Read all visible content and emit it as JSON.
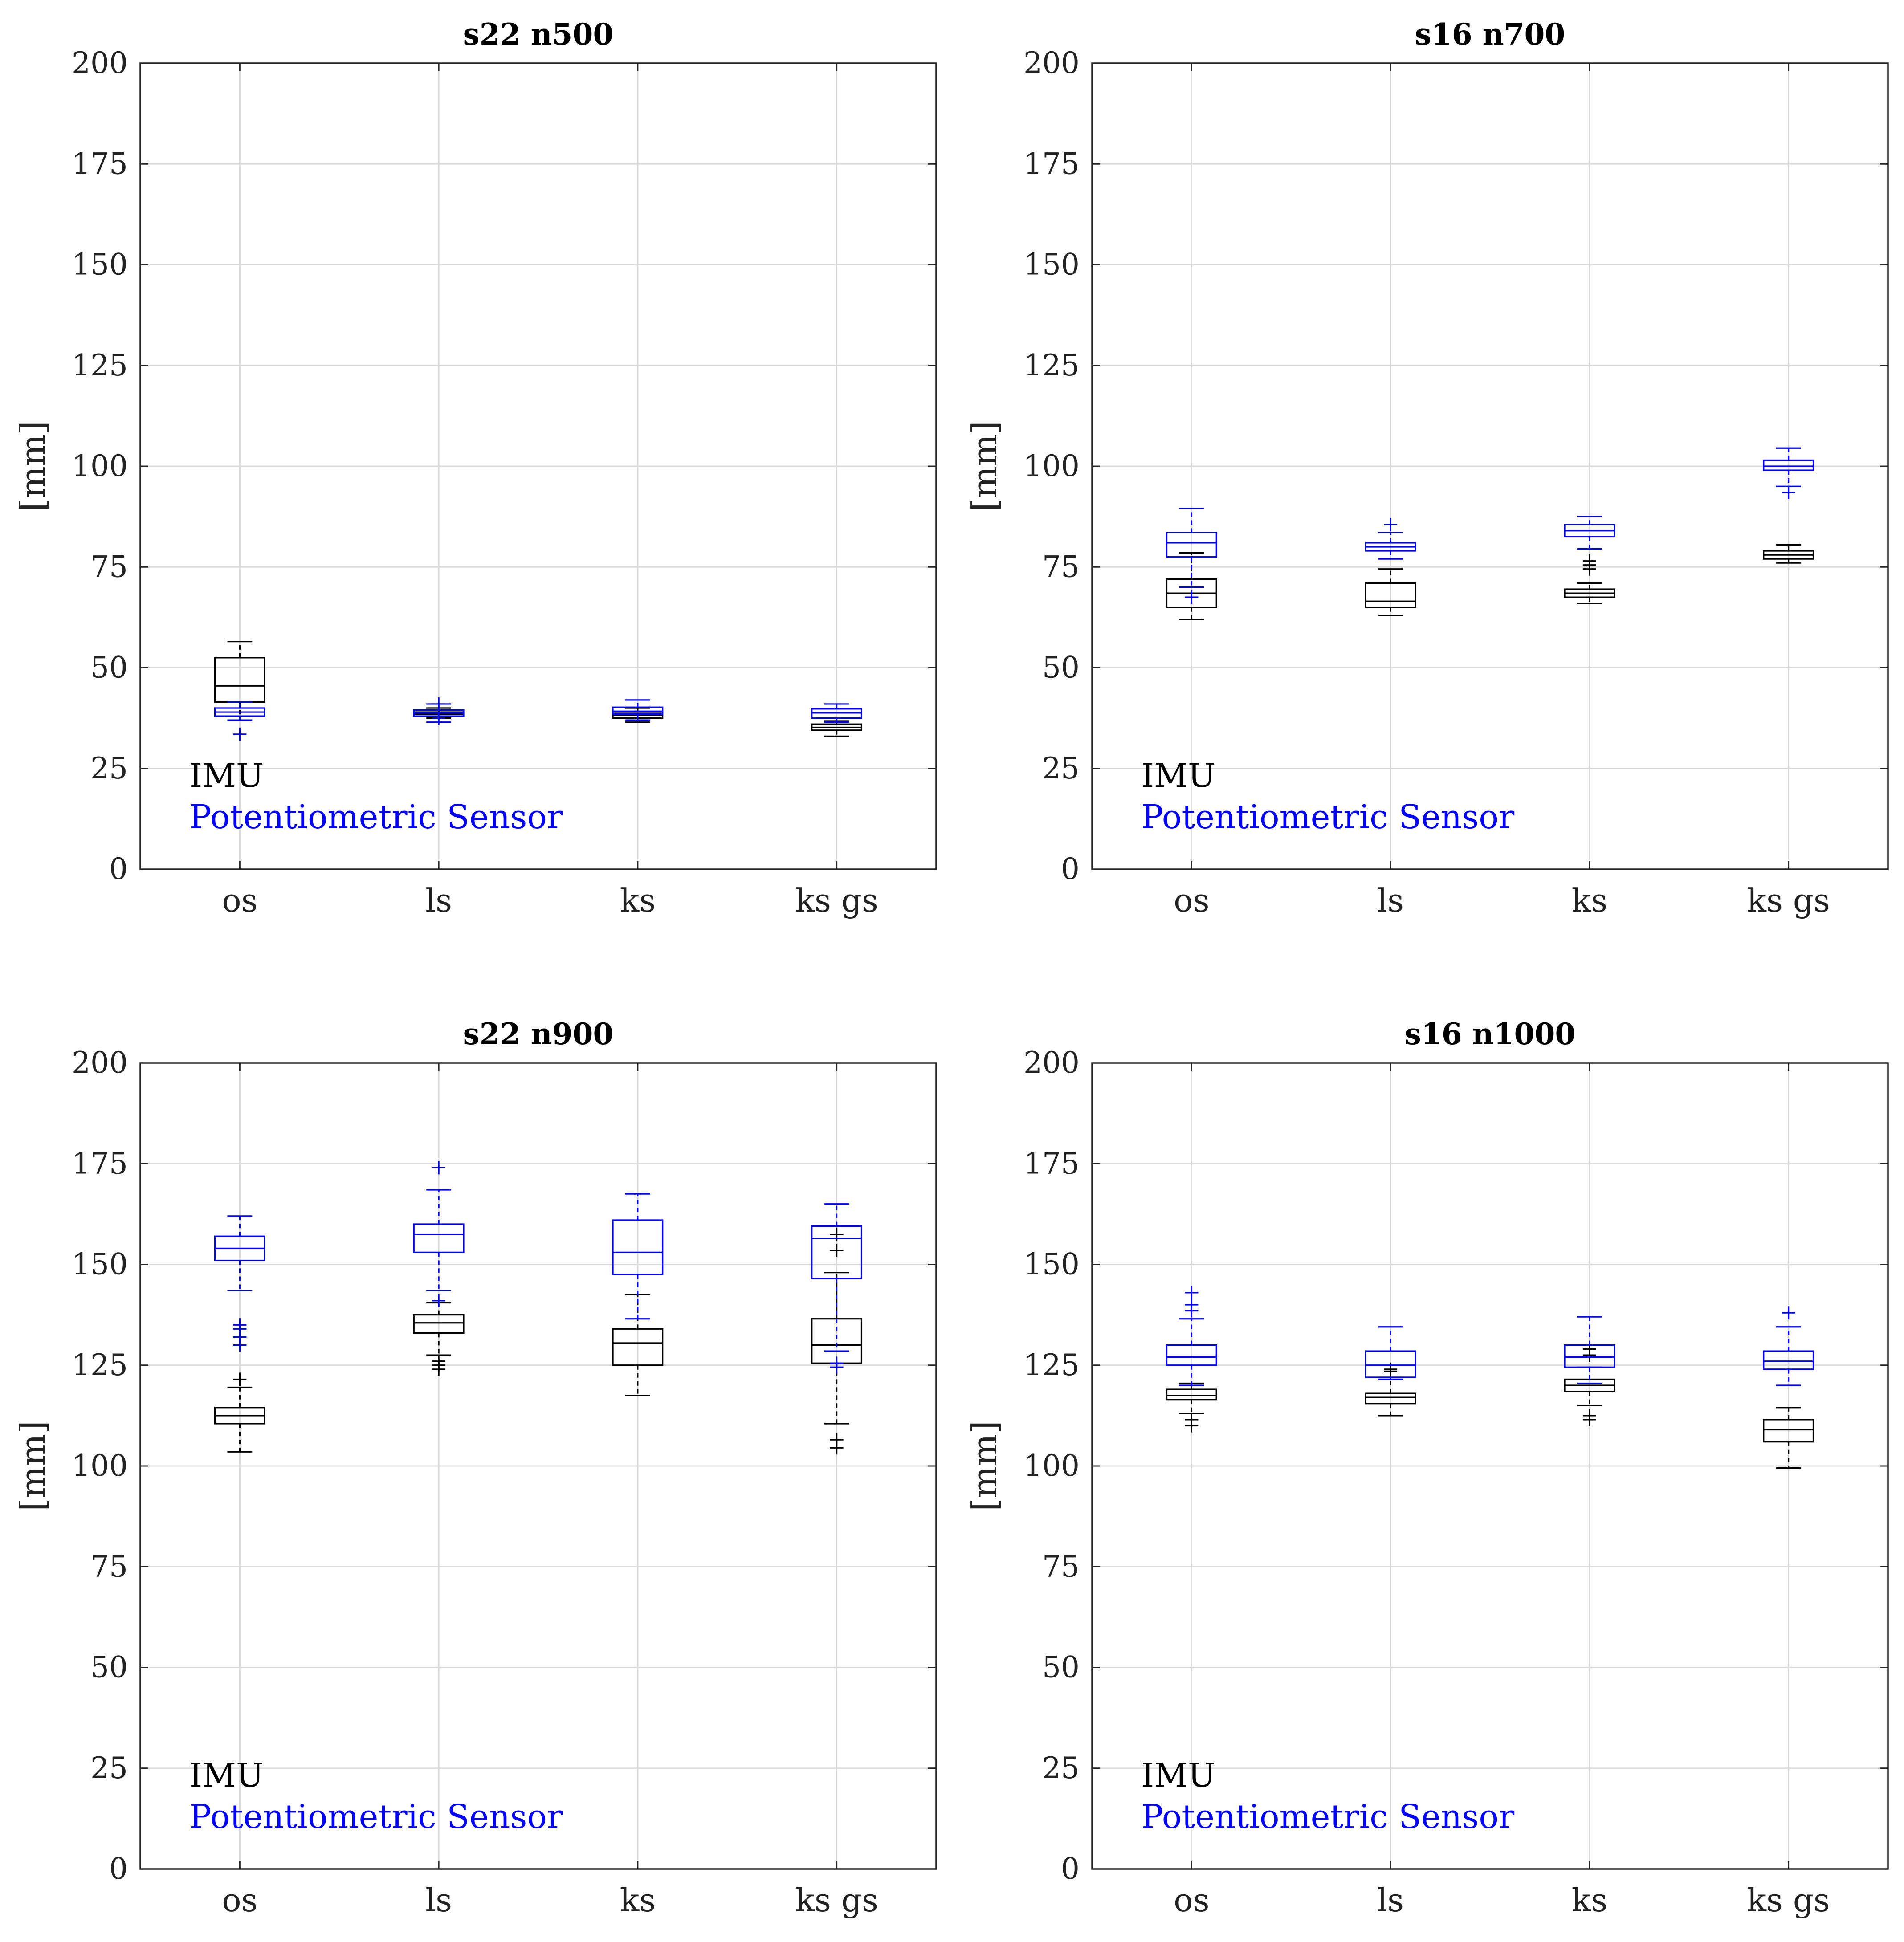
{
  "colors": {
    "imu": "#000000",
    "potentiometric": "#0000ff",
    "grid": "#d9d9d9",
    "axes": "#262626"
  },
  "legend": {
    "imu": "IMU",
    "potentiometric": "Potentiometric Sensor"
  },
  "chart_data": [
    {
      "type": "boxplot",
      "title": "s22 n500",
      "ylabel": "[mm]",
      "xlabel": "",
      "ylim": [
        0,
        200
      ],
      "yticks": [
        "0",
        "25",
        "50",
        "75",
        "100",
        "125",
        "150",
        "175",
        "200"
      ],
      "categories": [
        "os",
        "ls",
        "ks",
        "ks gs"
      ],
      "grid": true,
      "legend_position": "bottom-left",
      "series": [
        {
          "name": "IMU",
          "boxes": [
            {
              "whisker_low": 38,
              "q1": 41.5,
              "median": 45.5,
              "q3": 52.5,
              "whisker_high": 56.5,
              "outliers": []
            },
            {
              "whisker_low": 37.5,
              "q1": 38,
              "median": 38.5,
              "q3": 39,
              "whisker_high": 40,
              "outliers": []
            },
            {
              "whisker_low": 36.5,
              "q1": 37.5,
              "median": 38.2,
              "q3": 39,
              "whisker_high": 40,
              "outliers": []
            },
            {
              "whisker_low": 33,
              "q1": 34.5,
              "median": 35.2,
              "q3": 36,
              "whisker_high": 36.8,
              "outliers": []
            }
          ]
        },
        {
          "name": "Potentiometric Sensor",
          "boxes": [
            {
              "whisker_low": 37,
              "q1": 38,
              "median": 39,
              "q3": 40,
              "whisker_high": 41.5,
              "outliers": [
                33.5
              ]
            },
            {
              "whisker_low": 36.5,
              "q1": 38,
              "median": 38.8,
              "q3": 39.5,
              "whisker_high": 41,
              "outliers": [
                37.5,
                41
              ]
            },
            {
              "whisker_low": 37,
              "q1": 38.5,
              "median": 39.2,
              "q3": 40.2,
              "whisker_high": 42,
              "outliers": []
            },
            {
              "whisker_low": 36.5,
              "q1": 37.5,
              "median": 38.8,
              "q3": 39.8,
              "whisker_high": 41,
              "outliers": []
            }
          ]
        }
      ]
    },
    {
      "type": "boxplot",
      "title": "s16 n700",
      "ylabel": "[mm]",
      "xlabel": "",
      "ylim": [
        0,
        200
      ],
      "yticks": [
        "0",
        "25",
        "50",
        "75",
        "100",
        "125",
        "150",
        "175",
        "200"
      ],
      "categories": [
        "os",
        "ls",
        "ks",
        "ks gs"
      ],
      "grid": true,
      "legend_position": "bottom-left",
      "series": [
        {
          "name": "IMU",
          "boxes": [
            {
              "whisker_low": 62,
              "q1": 65,
              "median": 68.5,
              "q3": 72,
              "whisker_high": 78.5,
              "outliers": []
            },
            {
              "whisker_low": 63,
              "q1": 65,
              "median": 66.5,
              "q3": 71,
              "whisker_high": 74.5,
              "outliers": []
            },
            {
              "whisker_low": 66,
              "q1": 67.5,
              "median": 68.5,
              "q3": 69.5,
              "whisker_high": 71,
              "outliers": [
                74.5,
                75.5,
                76.5
              ]
            },
            {
              "whisker_low": 76,
              "q1": 77,
              "median": 78,
              "q3": 79,
              "whisker_high": 80.5,
              "outliers": []
            }
          ]
        },
        {
          "name": "Potentiometric Sensor",
          "boxes": [
            {
              "whisker_low": 70,
              "q1": 77.5,
              "median": 81,
              "q3": 83.5,
              "whisker_high": 89.5,
              "outliers": [
                67.5
              ]
            },
            {
              "whisker_low": 77,
              "q1": 79,
              "median": 80,
              "q3": 81,
              "whisker_high": 83.5,
              "outliers": [
                85.5
              ]
            },
            {
              "whisker_low": 79.5,
              "q1": 82.5,
              "median": 84,
              "q3": 85.5,
              "whisker_high": 87.5,
              "outliers": []
            },
            {
              "whisker_low": 95,
              "q1": 99,
              "median": 100,
              "q3": 101.5,
              "whisker_high": 104.5,
              "outliers": [
                93.5
              ]
            }
          ]
        }
      ]
    },
    {
      "type": "boxplot",
      "title": "s22 n900",
      "ylabel": "[mm]",
      "xlabel": "",
      "ylim": [
        0,
        200
      ],
      "yticks": [
        "0",
        "25",
        "50",
        "75",
        "100",
        "125",
        "150",
        "175",
        "200"
      ],
      "categories": [
        "os",
        "ls",
        "ks",
        "ks gs"
      ],
      "grid": true,
      "legend_position": "bottom-left",
      "series": [
        {
          "name": "IMU",
          "boxes": [
            {
              "whisker_low": 103.5,
              "q1": 110.5,
              "median": 112.5,
              "q3": 114.5,
              "whisker_high": 119.5,
              "outliers": [
                121.5
              ]
            },
            {
              "whisker_low": 127.5,
              "q1": 133,
              "median": 135.5,
              "q3": 137.5,
              "whisker_high": 140.5,
              "outliers": [
                124,
                125,
                126
              ]
            },
            {
              "whisker_low": 117.5,
              "q1": 125,
              "median": 130.5,
              "q3": 134,
              "whisker_high": 142.5,
              "outliers": []
            },
            {
              "whisker_low": 110.5,
              "q1": 125.5,
              "median": 130,
              "q3": 136.5,
              "whisker_high": 148,
              "outliers": [
                104.5,
                106.5,
                153.5,
                157.5
              ]
            }
          ]
        },
        {
          "name": "Potentiometric Sensor",
          "boxes": [
            {
              "whisker_low": 143.5,
              "q1": 151,
              "median": 154,
              "q3": 157,
              "whisker_high": 162,
              "outliers": [
                130,
                132,
                134,
                135
              ]
            },
            {
              "whisker_low": 143.5,
              "q1": 153,
              "median": 157.5,
              "q3": 160,
              "whisker_high": 168.5,
              "outliers": [
                141,
                174
              ]
            },
            {
              "whisker_low": 136.5,
              "q1": 147.5,
              "median": 153,
              "q3": 161,
              "whisker_high": 167.5,
              "outliers": []
            },
            {
              "whisker_low": 128.5,
              "q1": 146.5,
              "median": 156.5,
              "q3": 159.5,
              "whisker_high": 165,
              "outliers": [
                124.5,
                125.5
              ]
            }
          ]
        }
      ]
    },
    {
      "type": "boxplot",
      "title": "s16 n1000",
      "ylabel": "[mm]",
      "xlabel": "",
      "ylim": [
        0,
        200
      ],
      "yticks": [
        "0",
        "25",
        "50",
        "75",
        "100",
        "125",
        "150",
        "175",
        "200"
      ],
      "categories": [
        "os",
        "ls",
        "ks",
        "ks gs"
      ],
      "grid": true,
      "legend_position": "bottom-left",
      "series": [
        {
          "name": "IMU",
          "boxes": [
            {
              "whisker_low": 113,
              "q1": 116.5,
              "median": 117.5,
              "q3": 119,
              "whisker_high": 120.5,
              "outliers": [
                110,
                111.5
              ]
            },
            {
              "whisker_low": 112.5,
              "q1": 115.5,
              "median": 117,
              "q3": 118,
              "whisker_high": 121.5,
              "outliers": [
                123.5,
                124
              ]
            },
            {
              "whisker_low": 115,
              "q1": 118.5,
              "median": 120,
              "q3": 121.5,
              "whisker_high": 124.5,
              "outliers": [
                111.5,
                112.5,
                127.5,
                129
              ]
            },
            {
              "whisker_low": 99.5,
              "q1": 106,
              "median": 109,
              "q3": 111.5,
              "whisker_high": 114.5,
              "outliers": []
            }
          ]
        },
        {
          "name": "Potentiometric Sensor",
          "boxes": [
            {
              "whisker_low": 120,
              "q1": 125,
              "median": 127,
              "q3": 130,
              "whisker_high": 136.5,
              "outliers": [
                138.5,
                140,
                143
              ]
            },
            {
              "whisker_low": 121.5,
              "q1": 122,
              "median": 125,
              "q3": 128.5,
              "whisker_high": 134.5,
              "outliers": []
            },
            {
              "whisker_low": 120.5,
              "q1": 124.5,
              "median": 127,
              "q3": 130,
              "whisker_high": 137,
              "outliers": []
            },
            {
              "whisker_low": 120,
              "q1": 124,
              "median": 126,
              "q3": 128.5,
              "whisker_high": 134.5,
              "outliers": [
                138
              ]
            }
          ]
        }
      ]
    }
  ]
}
